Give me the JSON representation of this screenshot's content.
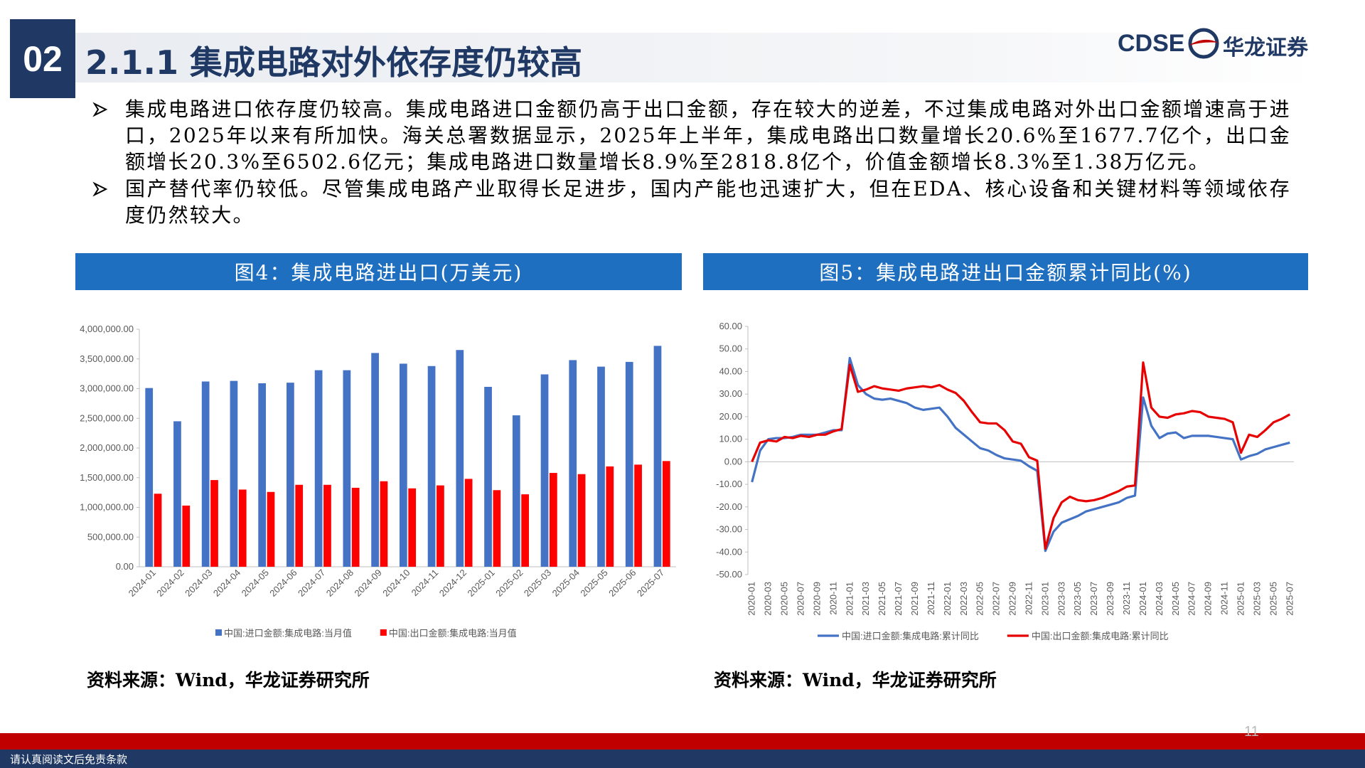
{
  "header": {
    "number": "02",
    "title": "2.1.1 集成电路对外依存度仍较高",
    "logo_en": "CDSE",
    "logo_cn": "华龙证券"
  },
  "bullets": [
    "集成电路进口依存度仍较高。集成电路进口金额仍高于出口金额，存在较大的逆差，不过集成电路对外出口金额增速高于进口，2025年以来有所加快。海关总署数据显示，2025年上半年，集成电路出口数量增长20.6%至1677.7亿个，出口金额增长20.3%至6502.6亿元；集成电路进口数量增长8.9%至2818.8亿个，价值金额增长8.3%至1.38万亿元。",
    "国产替代率仍较低。尽管集成电路产业取得长足进步，国内产能也迅速扩大，但在EDA、核心设备和关键材料等领域依存度仍然较大。"
  ],
  "chart_data": [
    {
      "type": "bar",
      "title": "图4：集成电路进出口(万美元)",
      "source": "资料来源：Wind，华龙证券研究所",
      "categories": [
        "2024-01",
        "2024-02",
        "2024-03",
        "2024-04",
        "2024-05",
        "2024-06",
        "2024-07",
        "2024-08",
        "2024-09",
        "2024-10",
        "2024-11",
        "2024-12",
        "2025-01",
        "2025-02",
        "2025-03",
        "2025-04",
        "2025-05",
        "2025-06",
        "2025-07"
      ],
      "series": [
        {
          "name": "中国:进口金额:集成电路:当月值",
          "color": "#4472c4",
          "values": [
            3010000,
            2450000,
            3120000,
            3130000,
            3090000,
            3100000,
            3310000,
            3310000,
            3600000,
            3420000,
            3380000,
            3650000,
            3030000,
            2550000,
            3240000,
            3480000,
            3370000,
            3450000,
            3720000
          ]
        },
        {
          "name": "中国:出口金额:集成电路:当月值",
          "color": "#ff0000",
          "values": [
            1230000,
            1030000,
            1460000,
            1300000,
            1260000,
            1380000,
            1380000,
            1330000,
            1440000,
            1320000,
            1370000,
            1480000,
            1290000,
            1220000,
            1580000,
            1560000,
            1690000,
            1720000,
            1780000
          ]
        }
      ],
      "ylim": [
        0,
        4000000
      ],
      "yticks": [
        {
          "value": 0,
          "label": "0.00"
        },
        {
          "value": 500000,
          "label": "500,000.00"
        },
        {
          "value": 1000000,
          "label": "1,000,000.00"
        },
        {
          "value": 1500000,
          "label": "1,500,000.00"
        },
        {
          "value": 2000000,
          "label": "2,000,000.00"
        },
        {
          "value": 2500000,
          "label": "2,500,000.00"
        },
        {
          "value": 3000000,
          "label": "3,000,000.00"
        },
        {
          "value": 3500000,
          "label": "3,500,000.00"
        },
        {
          "value": 4000000,
          "label": "4,000,000.00"
        }
      ],
      "grid": false
    },
    {
      "type": "line",
      "title": "图5：集成电路进出口金额累计同比(%)",
      "source": "资料来源：Wind，华龙证券研究所",
      "categories": [
        "2020-01",
        null,
        "2020-03",
        null,
        "2020-05",
        null,
        "2020-07",
        null,
        "2020-09",
        null,
        "2020-11",
        null,
        "2021-01",
        null,
        "2021-03",
        null,
        "2021-05",
        null,
        "2021-07",
        null,
        "2021-09",
        null,
        "2021-11",
        null,
        "2022-01",
        null,
        "2022-03",
        null,
        "2022-05",
        null,
        "2022-07",
        null,
        "2022-09",
        null,
        "2022-11",
        null,
        "2023-01",
        null,
        "2023-03",
        null,
        "2023-05",
        null,
        "2023-07",
        null,
        "2023-09",
        null,
        "2023-11",
        null,
        "2024-01",
        null,
        "2024-03",
        null,
        "2024-05",
        null,
        "2024-07",
        null,
        "2024-09",
        null,
        "2024-11",
        null,
        "2025-01",
        null,
        "2025-03",
        null,
        "2025-05",
        null,
        "2025-07"
      ],
      "series": [
        {
          "name": "中国:进口金额:集成电路:累计同比",
          "color": "#4472c4",
          "values": [
            -9,
            5,
            10,
            10.5,
            10.5,
            11,
            12,
            12,
            12,
            13,
            14,
            14,
            46,
            34,
            30,
            28,
            27.5,
            28,
            27,
            26,
            24,
            23,
            23.5,
            24,
            20,
            15,
            12,
            9,
            6,
            5,
            3,
            1.5,
            1,
            0.5,
            -2,
            -4,
            -39.5,
            -31,
            -27,
            -25.5,
            -24,
            -22,
            -21,
            -20,
            -19,
            -18,
            -16,
            -15,
            28.5,
            16,
            10.5,
            12.5,
            13,
            10.5,
            11.5,
            11.5,
            11.5,
            11,
            10.5,
            10,
            1,
            2.5,
            3.5,
            5.5,
            6.5,
            7.5,
            8.5
          ]
        },
        {
          "name": "中国:出口金额:集成电路:累计同比",
          "color": "#e60000",
          "values": [
            0,
            8.5,
            9.5,
            9,
            11,
            10.5,
            11.5,
            11,
            12,
            12,
            13.5,
            14.5,
            43,
            31,
            32,
            33.5,
            32.5,
            32,
            31.5,
            32.5,
            33,
            33.5,
            33,
            34,
            32,
            30.5,
            27,
            22,
            17.5,
            17,
            17,
            14,
            9,
            8,
            2,
            0.5,
            -38.5,
            -25,
            -18,
            -15.5,
            -17,
            -17.5,
            -17,
            -16,
            -14.5,
            -13,
            -11,
            -10.5,
            44,
            24,
            20,
            19.5,
            21,
            21.5,
            22.5,
            22,
            20,
            19.5,
            19,
            17.5,
            4,
            12,
            11,
            14,
            17.5,
            19,
            21
          ]
        }
      ],
      "ylim": [
        -50,
        60
      ],
      "yticks": [
        {
          "value": -50,
          "label": "-50.00"
        },
        {
          "value": -40,
          "label": "-40.00"
        },
        {
          "value": -30,
          "label": "-30.00"
        },
        {
          "value": -20,
          "label": "-20.00"
        },
        {
          "value": -10,
          "label": "-10.00"
        },
        {
          "value": 0,
          "label": "0.00"
        },
        {
          "value": 10,
          "label": "10.00"
        },
        {
          "value": 20,
          "label": "20.00"
        },
        {
          "value": 30,
          "label": "30.00"
        },
        {
          "value": 40,
          "label": "40.00"
        },
        {
          "value": 50,
          "label": "50.00"
        },
        {
          "value": 60,
          "label": "60.00"
        }
      ],
      "grid": false
    }
  ],
  "footer": {
    "disclaimer": "请认真阅读文后免责条款",
    "page": 11
  }
}
